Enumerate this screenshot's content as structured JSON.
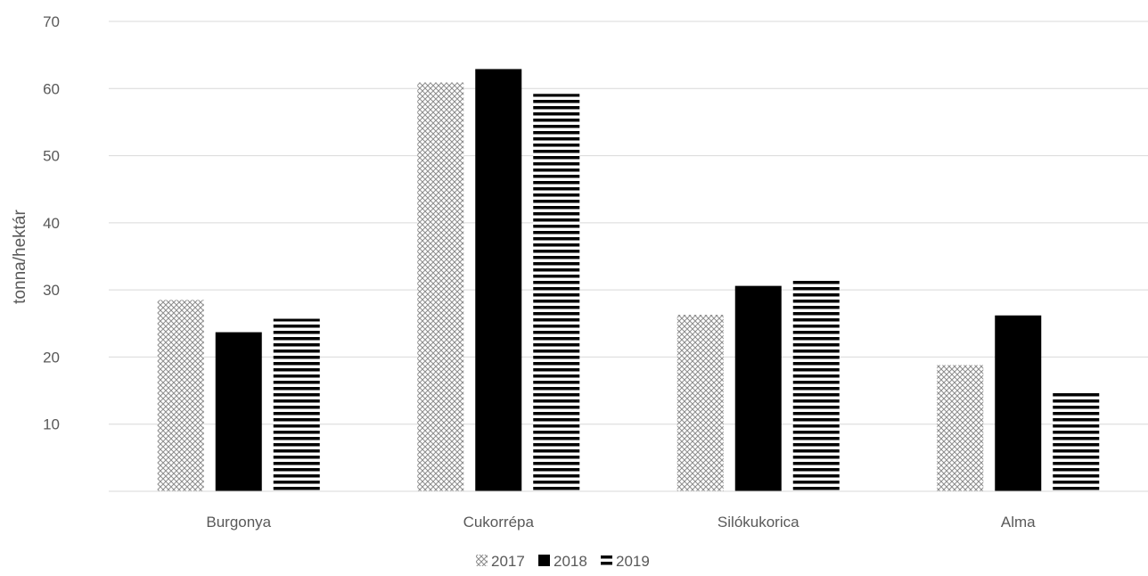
{
  "chart_data": {
    "type": "bar",
    "title": "",
    "xlabel": "",
    "ylabel": "tonna/hektár",
    "categories": [
      "Burgonya",
      "Cukorrépa",
      "Silókukorica",
      "Alma"
    ],
    "series": [
      {
        "name": "2017",
        "values": [
          28.5,
          60.9,
          26.3,
          18.8
        ],
        "pattern": "crosshatch",
        "color": "#7f7f7f"
      },
      {
        "name": "2018",
        "values": [
          23.7,
          62.9,
          30.6,
          26.2
        ],
        "pattern": "solid",
        "color": "#000000"
      },
      {
        "name": "2019",
        "values": [
          25.7,
          59.2,
          31.8,
          15.0
        ],
        "pattern": "horizontal-stripes",
        "color": "#000000"
      }
    ],
    "ylim": [
      0,
      70
    ],
    "yticks": [
      10,
      20,
      30,
      40,
      50,
      60,
      70
    ],
    "grid": true,
    "legend_position": "bottom-center"
  }
}
